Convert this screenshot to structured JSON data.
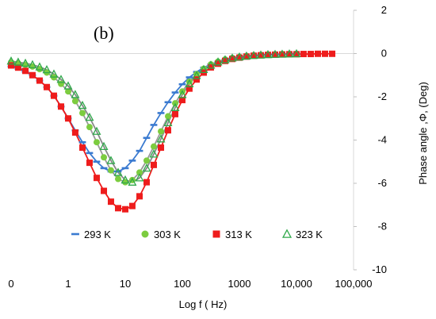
{
  "chart_data": {
    "type": "scatter",
    "panel_label": "(b)",
    "xlabel": "Log f ( Hz)",
    "ylabel": "Phase angle ,Φ, (Deg)",
    "x_scale": "log",
    "xlim": [
      0.1,
      100000
    ],
    "ylim": [
      -10,
      2
    ],
    "x_ticks": [
      {
        "value": 0.1,
        "label": "0"
      },
      {
        "value": 1,
        "label": "1"
      },
      {
        "value": 10,
        "label": "10"
      },
      {
        "value": 100,
        "label": "100"
      },
      {
        "value": 1000,
        "label": "1000"
      },
      {
        "value": 10000,
        "label": "10,000"
      },
      {
        "value": 100000,
        "label": "100,000"
      }
    ],
    "y_ticks": [
      2,
      0,
      -2,
      -4,
      -6,
      -8,
      -10
    ],
    "y_axis_side": "right",
    "grid": false,
    "legend_position": "bottom-center",
    "series": [
      {
        "name": "293 K",
        "marker": "dash",
        "color": "#3a7ad0",
        "fit_line_color": "#3a7ad0",
        "x": [
          0.1,
          0.133,
          0.178,
          0.237,
          0.316,
          0.422,
          0.562,
          0.75,
          1.0,
          1.33,
          1.78,
          2.37,
          3.16,
          4.22,
          5.62,
          7.5,
          10.0,
          13.3,
          17.8,
          23.7,
          31.6,
          42.2,
          56.2,
          75.0,
          100,
          133,
          178,
          237,
          316,
          422,
          562,
          750,
          1000,
          1330,
          1780,
          2370,
          3160,
          4220,
          5620,
          7500,
          10000
        ],
        "y": [
          -0.6,
          -0.7,
          -0.85,
          -1.0,
          -1.25,
          -1.55,
          -1.95,
          -2.45,
          -3.0,
          -3.55,
          -4.1,
          -4.6,
          -5.0,
          -5.3,
          -5.45,
          -5.45,
          -5.3,
          -4.95,
          -4.5,
          -3.9,
          -3.3,
          -2.75,
          -2.25,
          -1.8,
          -1.42,
          -1.1,
          -0.85,
          -0.65,
          -0.5,
          -0.38,
          -0.29,
          -0.22,
          -0.17,
          -0.13,
          -0.1,
          -0.07,
          -0.05,
          -0.04,
          -0.03,
          -0.02,
          -0.01
        ]
      },
      {
        "name": "303 K",
        "marker": "circle",
        "color": "#7ccc3f",
        "fit_line_color": "#999999",
        "x": [
          0.1,
          0.133,
          0.178,
          0.237,
          0.316,
          0.422,
          0.562,
          0.75,
          1.0,
          1.33,
          1.78,
          2.37,
          3.16,
          4.22,
          5.62,
          7.5,
          10.0,
          13.3,
          17.8,
          23.7,
          31.6,
          42.2,
          56.2,
          75.0,
          100,
          133,
          178,
          237,
          316,
          422,
          562,
          750,
          1000,
          1330,
          1780,
          2370,
          3160,
          4220,
          5620,
          7500,
          10000
        ],
        "y": [
          -0.4,
          -0.45,
          -0.52,
          -0.6,
          -0.72,
          -0.88,
          -1.1,
          -1.4,
          -1.75,
          -2.2,
          -2.75,
          -3.4,
          -4.1,
          -4.8,
          -5.4,
          -5.8,
          -5.95,
          -5.85,
          -5.5,
          -4.95,
          -4.3,
          -3.6,
          -2.9,
          -2.3,
          -1.75,
          -1.3,
          -0.95,
          -0.7,
          -0.5,
          -0.37,
          -0.27,
          -0.2,
          -0.15,
          -0.11,
          -0.08,
          -0.06,
          -0.04,
          -0.03,
          -0.02,
          -0.02,
          -0.01
        ]
      },
      {
        "name": "313 K",
        "marker": "square",
        "color": "#ee1c1c",
        "fit_line_color": "#ee1c1c",
        "x": [
          0.1,
          0.133,
          0.178,
          0.237,
          0.316,
          0.422,
          0.562,
          0.75,
          1.0,
          1.33,
          1.78,
          2.37,
          3.16,
          4.22,
          5.62,
          7.5,
          10.0,
          13.3,
          17.8,
          23.7,
          31.6,
          42.2,
          56.2,
          75.0,
          100,
          133,
          178,
          237,
          316,
          422,
          562,
          750,
          1000,
          1330,
          1780,
          2370,
          3160,
          4220,
          5620,
          7500,
          10000,
          13300,
          17800,
          23700,
          31600,
          42200
        ],
        "y": [
          -0.55,
          -0.65,
          -0.8,
          -1.0,
          -1.25,
          -1.55,
          -1.95,
          -2.45,
          -3.0,
          -3.65,
          -4.35,
          -5.05,
          -5.75,
          -6.35,
          -6.85,
          -7.15,
          -7.2,
          -7.05,
          -6.6,
          -5.95,
          -5.15,
          -4.35,
          -3.55,
          -2.8,
          -2.15,
          -1.62,
          -1.2,
          -0.88,
          -0.64,
          -0.47,
          -0.34,
          -0.25,
          -0.19,
          -0.14,
          -0.1,
          -0.08,
          -0.06,
          -0.05,
          -0.04,
          -0.03,
          -0.03,
          -0.02,
          -0.02,
          -0.01,
          -0.01,
          -0.01
        ]
      },
      {
        "name": "323 K",
        "marker": "triangle",
        "color": "#2fa84a",
        "fit_line_color": "#888888",
        "x": [
          0.1,
          0.133,
          0.178,
          0.237,
          0.316,
          0.422,
          0.562,
          0.75,
          1.0,
          1.33,
          1.78,
          2.37,
          3.16,
          4.22,
          5.62,
          7.5,
          10.0,
          13.3,
          17.8,
          23.7,
          31.6,
          42.2,
          56.2,
          75.0,
          100,
          133,
          178,
          237,
          316,
          422,
          562,
          750,
          1000,
          1330,
          1780,
          2370,
          3160,
          4220,
          5620,
          7500,
          10000
        ],
        "y": [
          -0.35,
          -0.4,
          -0.45,
          -0.52,
          -0.62,
          -0.75,
          -0.95,
          -1.2,
          -1.5,
          -1.9,
          -2.4,
          -2.95,
          -3.6,
          -4.3,
          -4.95,
          -5.5,
          -5.85,
          -5.95,
          -5.75,
          -5.3,
          -4.65,
          -3.95,
          -3.2,
          -2.5,
          -1.9,
          -1.4,
          -1.02,
          -0.74,
          -0.54,
          -0.39,
          -0.29,
          -0.21,
          -0.16,
          -0.12,
          -0.09,
          -0.07,
          -0.05,
          -0.04,
          -0.03,
          -0.02,
          -0.01
        ]
      }
    ]
  }
}
